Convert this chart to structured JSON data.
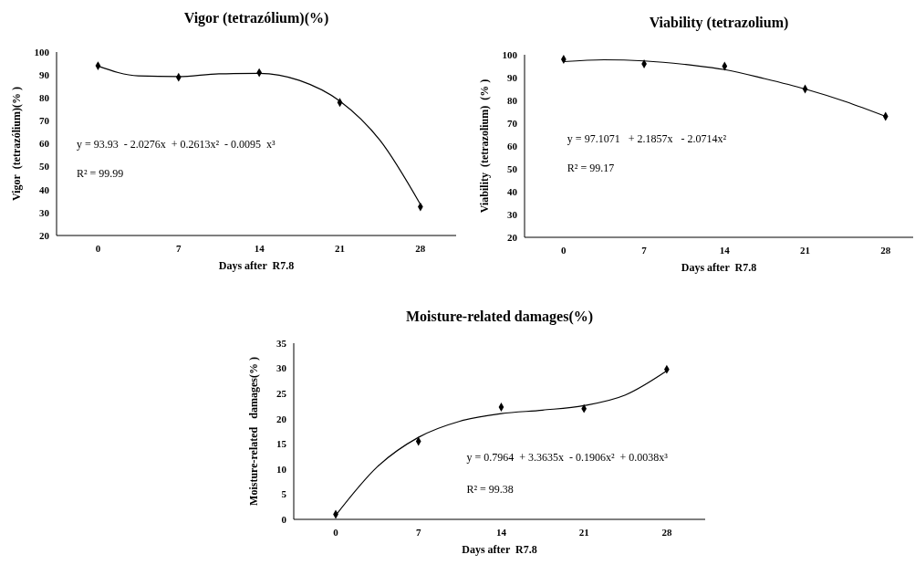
{
  "chart_data": [
    {
      "type": "scatter",
      "title": "Vigor (tetrazólium)(%)",
      "xlabel": "Days after  R7.8",
      "ylabel": "Vigor  (tetrazólium)(% )",
      "xlim": [
        -3.6,
        31.1
      ],
      "xticks": [
        0,
        7,
        14,
        21,
        28
      ],
      "ylim": [
        20,
        100
      ],
      "yticks": [
        20,
        30,
        40,
        50,
        60,
        70,
        80,
        90,
        100
      ],
      "annotations": [
        "y = 93.93  - 2.0276x  + 0.2613x²  - 0.0095  x³",
        "R² = 99.99"
      ],
      "series": [
        {
          "color": "#000000",
          "marker": "diamond",
          "x": [
            0,
            7,
            14,
            21,
            28
          ],
          "values": [
            94,
            89,
            91,
            78,
            32.5
          ]
        },
        {
          "type": "line",
          "marker": "none",
          "color": "#000000",
          "x": [
            0,
            3.5,
            7,
            10.5,
            14,
            17.5,
            21,
            24.5,
            28
          ],
          "values": [
            93.9,
            89.6,
            89.3,
            90.5,
            90.7,
            87.6,
            78.6,
            61.4,
            33.5
          ]
        }
      ]
    },
    {
      "type": "scatter",
      "title": "Viability (tetrazolium)",
      "xlabel": "Days after  R7.8",
      "ylabel": "Viability  (tetrazolium)  (% )",
      "xlim": [
        -3.4,
        30.4
      ],
      "xticks": [
        0,
        7,
        14,
        21,
        28
      ],
      "ylim": [
        20,
        100
      ],
      "yticks": [
        20,
        30,
        40,
        50,
        60,
        70,
        80,
        90,
        100
      ],
      "annotations": [
        "y = 97.1071   + 2.1857x   - 2.0714x²",
        "R² = 99.17"
      ],
      "series": [
        {
          "color": "#000000",
          "marker": "diamond",
          "x": [
            0,
            7,
            14,
            21,
            28
          ],
          "values": [
            98,
            96,
            95,
            85,
            73
          ]
        },
        {
          "type": "line",
          "marker": "none",
          "color": "#000000",
          "x": [
            0,
            3.5,
            7,
            10.5,
            14,
            17.5,
            21,
            24.5,
            28
          ],
          "values": [
            97,
            97.8,
            97.3,
            95.8,
            93.5,
            89.5,
            85,
            79.5,
            73
          ]
        }
      ]
    },
    {
      "type": "scatter",
      "title": "Moisture-related damages(%)",
      "xlabel": "Days after  R7.8",
      "ylabel": "Moisture-related   damages(% )",
      "xlim": [
        -3.55,
        31.25
      ],
      "xticks": [
        0,
        7,
        14,
        21,
        28
      ],
      "ylim": [
        0,
        35
      ],
      "yticks": [
        0,
        5,
        10,
        15,
        20,
        25,
        30,
        35
      ],
      "annotations": [
        "y = 0.7964  + 3.3635x  - 0.1906x²  + 0.0038x³",
        "R² = 99.38"
      ],
      "series": [
        {
          "color": "#000000",
          "marker": "diamond",
          "x": [
            0,
            7,
            14,
            21,
            28
          ],
          "values": [
            1,
            15.5,
            22.3,
            22,
            29.8
          ]
        },
        {
          "type": "line",
          "marker": "none",
          "color": "#000000",
          "x": [
            0,
            3.5,
            7,
            10.5,
            14,
            17.5,
            21,
            24.5,
            28
          ],
          "values": [
            0.8,
            10.4,
            16.3,
            19.5,
            21,
            21.7,
            22.6,
            24.7,
            29.5
          ]
        }
      ]
    }
  ]
}
